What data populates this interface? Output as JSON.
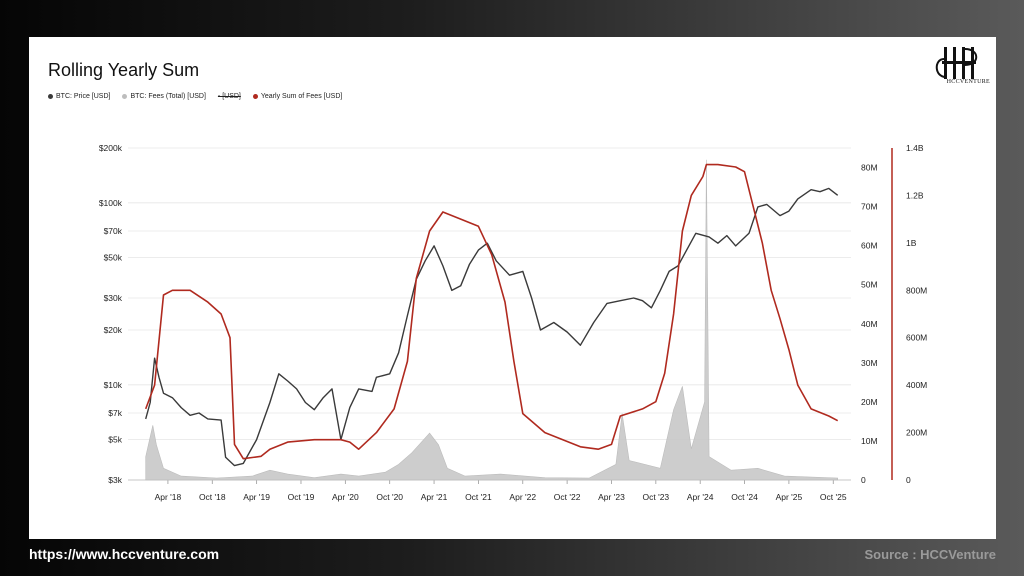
{
  "footer": {
    "url": "https://www.hccventure.com",
    "source": "Source : HCCVenture"
  },
  "logo": {
    "text": "HCCVENTURE"
  },
  "colors": {
    "price": "#3a3a3a",
    "fees": "#c8c8c8",
    "yearly": "#b02a1f",
    "grid": "#e6e6e6"
  },
  "chart_data": {
    "type": "line",
    "title": "Rolling Yearly Sum",
    "legend": [
      "BTC: Price [USD]",
      "BTC: Fees (Total) [USD]",
      "- [USD]",
      "Yearly Sum of Fees [USD]"
    ],
    "x_ticks": [
      "Apr '18",
      "Oct '18",
      "Apr '19",
      "Oct '19",
      "Apr '20",
      "Oct '20",
      "Apr '21",
      "Oct '21",
      "Apr '22",
      "Oct '22",
      "Apr '23",
      "Oct '23",
      "Apr '24",
      "Oct '24",
      "Apr '25",
      "Oct '25"
    ],
    "y_left_ticks": [
      "$200k",
      "$100k",
      "$70k",
      "$50k",
      "$30k",
      "$20k",
      "$10k",
      "$7k",
      "$5k",
      "$3k"
    ],
    "y_left_values": [
      200000,
      100000,
      70000,
      50000,
      30000,
      20000,
      10000,
      7000,
      5000,
      3000
    ],
    "y_left_scale": "log",
    "y_mid_ticks": [
      "80M",
      "70M",
      "60M",
      "50M",
      "40M",
      "30M",
      "20M",
      "10M",
      "0"
    ],
    "y_mid_values": [
      80,
      70,
      60,
      50,
      40,
      30,
      20,
      10,
      0
    ],
    "y_right_ticks": [
      "1.4B",
      "1.2B",
      "1B",
      "800M",
      "600M",
      "400M",
      "200M",
      "0"
    ],
    "y_right_values": [
      1.4,
      1.2,
      1.0,
      0.8,
      0.6,
      0.4,
      0.2,
      0
    ],
    "series": [
      {
        "name": "BTC: Price [USD]",
        "axis": "left",
        "points": [
          [
            2018.0,
            6500
          ],
          [
            2018.05,
            8000
          ],
          [
            2018.1,
            14000
          ],
          [
            2018.15,
            11000
          ],
          [
            2018.2,
            9000
          ],
          [
            2018.3,
            8500
          ],
          [
            2018.4,
            7500
          ],
          [
            2018.5,
            6800
          ],
          [
            2018.6,
            7000
          ],
          [
            2018.7,
            6500
          ],
          [
            2018.85,
            6400
          ],
          [
            2018.9,
            4000
          ],
          [
            2019.0,
            3600
          ],
          [
            2019.1,
            3700
          ],
          [
            2019.25,
            5000
          ],
          [
            2019.4,
            8000
          ],
          [
            2019.5,
            11500
          ],
          [
            2019.6,
            10500
          ],
          [
            2019.7,
            9500
          ],
          [
            2019.8,
            8000
          ],
          [
            2019.9,
            7300
          ],
          [
            2020.0,
            8500
          ],
          [
            2020.1,
            9500
          ],
          [
            2020.2,
            5000
          ],
          [
            2020.3,
            7500
          ],
          [
            2020.4,
            9500
          ],
          [
            2020.55,
            9200
          ],
          [
            2020.6,
            11000
          ],
          [
            2020.75,
            11500
          ],
          [
            2020.85,
            15000
          ],
          [
            2020.95,
            24000
          ],
          [
            2021.05,
            38000
          ],
          [
            2021.15,
            48000
          ],
          [
            2021.25,
            58000
          ],
          [
            2021.35,
            45000
          ],
          [
            2021.45,
            33000
          ],
          [
            2021.55,
            35000
          ],
          [
            2021.65,
            46000
          ],
          [
            2021.75,
            55000
          ],
          [
            2021.85,
            60000
          ],
          [
            2021.95,
            48000
          ],
          [
            2022.1,
            40000
          ],
          [
            2022.25,
            42000
          ],
          [
            2022.35,
            30000
          ],
          [
            2022.45,
            20000
          ],
          [
            2022.6,
            22000
          ],
          [
            2022.75,
            19500
          ],
          [
            2022.9,
            16500
          ],
          [
            2023.05,
            22000
          ],
          [
            2023.2,
            28000
          ],
          [
            2023.35,
            29000
          ],
          [
            2023.5,
            30000
          ],
          [
            2023.6,
            29000
          ],
          [
            2023.7,
            26500
          ],
          [
            2023.8,
            33000
          ],
          [
            2023.9,
            42000
          ],
          [
            2024.0,
            45000
          ],
          [
            2024.2,
            68000
          ],
          [
            2024.35,
            65000
          ],
          [
            2024.45,
            60000
          ],
          [
            2024.55,
            66000
          ],
          [
            2024.65,
            58000
          ],
          [
            2024.8,
            68000
          ],
          [
            2024.9,
            95000
          ],
          [
            2025.0,
            98000
          ],
          [
            2025.15,
            85000
          ],
          [
            2025.25,
            90000
          ],
          [
            2025.35,
            105000
          ],
          [
            2025.5,
            118000
          ],
          [
            2025.6,
            115000
          ],
          [
            2025.7,
            120000
          ],
          [
            2025.8,
            110000
          ]
        ]
      },
      {
        "name": "BTC: Fees (Total) [USD]",
        "axis": "mid",
        "points": [
          [
            2018.0,
            6
          ],
          [
            2018.08,
            14
          ],
          [
            2018.12,
            9
          ],
          [
            2018.2,
            3
          ],
          [
            2018.4,
            1
          ],
          [
            2018.8,
            0.5
          ],
          [
            2019.2,
            1
          ],
          [
            2019.4,
            2.5
          ],
          [
            2019.6,
            1.5
          ],
          [
            2019.9,
            0.6
          ],
          [
            2020.2,
            1.5
          ],
          [
            2020.4,
            1
          ],
          [
            2020.7,
            2
          ],
          [
            2020.85,
            4
          ],
          [
            2021.0,
            7
          ],
          [
            2021.2,
            12
          ],
          [
            2021.3,
            9
          ],
          [
            2021.4,
            3
          ],
          [
            2021.6,
            1
          ],
          [
            2022.0,
            1.5
          ],
          [
            2022.5,
            0.6
          ],
          [
            2023.0,
            0.5
          ],
          [
            2023.3,
            4
          ],
          [
            2023.37,
            17
          ],
          [
            2023.45,
            5
          ],
          [
            2023.8,
            3
          ],
          [
            2023.95,
            18
          ],
          [
            2024.05,
            24
          ],
          [
            2024.15,
            8
          ],
          [
            2024.3,
            20
          ],
          [
            2024.32,
            82
          ],
          [
            2024.35,
            6
          ],
          [
            2024.6,
            2.5
          ],
          [
            2024.9,
            3
          ],
          [
            2025.2,
            1
          ],
          [
            2025.8,
            0.5
          ]
        ]
      },
      {
        "name": "Yearly Sum of Fees [USD]",
        "axis": "right",
        "points": [
          [
            2018.0,
            0.3
          ],
          [
            2018.1,
            0.4
          ],
          [
            2018.2,
            0.78
          ],
          [
            2018.3,
            0.8
          ],
          [
            2018.5,
            0.8
          ],
          [
            2018.7,
            0.75
          ],
          [
            2018.85,
            0.7
          ],
          [
            2018.95,
            0.6
          ],
          [
            2019.0,
            0.15
          ],
          [
            2019.1,
            0.09
          ],
          [
            2019.3,
            0.1
          ],
          [
            2019.4,
            0.13
          ],
          [
            2019.6,
            0.16
          ],
          [
            2019.9,
            0.17
          ],
          [
            2020.2,
            0.17
          ],
          [
            2020.3,
            0.16
          ],
          [
            2020.4,
            0.13
          ],
          [
            2020.6,
            0.2
          ],
          [
            2020.8,
            0.3
          ],
          [
            2020.95,
            0.5
          ],
          [
            2021.05,
            0.85
          ],
          [
            2021.2,
            1.05
          ],
          [
            2021.35,
            1.13
          ],
          [
            2021.55,
            1.1
          ],
          [
            2021.75,
            1.07
          ],
          [
            2021.9,
            0.95
          ],
          [
            2022.05,
            0.75
          ],
          [
            2022.15,
            0.5
          ],
          [
            2022.25,
            0.28
          ],
          [
            2022.5,
            0.2
          ],
          [
            2022.9,
            0.14
          ],
          [
            2023.1,
            0.13
          ],
          [
            2023.25,
            0.15
          ],
          [
            2023.35,
            0.27
          ],
          [
            2023.6,
            0.3
          ],
          [
            2023.75,
            0.33
          ],
          [
            2023.85,
            0.45
          ],
          [
            2023.95,
            0.7
          ],
          [
            2024.05,
            1.05
          ],
          [
            2024.15,
            1.2
          ],
          [
            2024.28,
            1.28
          ],
          [
            2024.32,
            1.33
          ],
          [
            2024.45,
            1.33
          ],
          [
            2024.65,
            1.32
          ],
          [
            2024.75,
            1.3
          ],
          [
            2024.85,
            1.15
          ],
          [
            2024.95,
            1.0
          ],
          [
            2025.05,
            0.8
          ],
          [
            2025.15,
            0.68
          ],
          [
            2025.25,
            0.55
          ],
          [
            2025.35,
            0.4
          ],
          [
            2025.5,
            0.3
          ],
          [
            2025.7,
            0.27
          ],
          [
            2025.8,
            0.25
          ]
        ]
      }
    ],
    "grid": true
  }
}
